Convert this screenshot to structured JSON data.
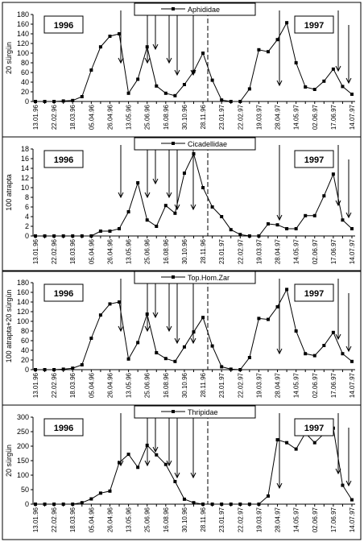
{
  "chart_data": [
    {
      "type": "line",
      "y_label": "20 sürgün",
      "annotations": [
        "1996",
        "1997"
      ],
      "categories": [
        "13.01.96",
        null,
        "22.02.96",
        null,
        "18.03.96",
        null,
        "05.04.96",
        null,
        "26.04.96",
        null,
        "13.05.96",
        null,
        "25.06.96",
        null,
        "16.08.96",
        null,
        "30.10.96",
        null,
        "28.11.96",
        null,
        "23.01.97",
        null,
        "22.02.97",
        null,
        "19.03.97",
        null,
        "28.04.97",
        null,
        "14.05.97",
        null,
        "02.06.97",
        null,
        "17.06.97",
        null,
        "14.07.97"
      ],
      "series": [
        {
          "name": "Aphididae",
          "color": "#000000",
          "values": [
            0,
            0,
            0,
            1,
            2,
            10,
            65,
            113,
            135,
            140,
            17,
            46,
            113,
            32,
            17,
            12,
            35,
            62,
            100,
            44,
            3,
            0,
            0,
            26,
            107,
            103,
            128,
            163,
            80,
            30,
            25,
            42,
            67,
            31,
            15
          ]
        }
      ],
      "ylim": [
        0,
        180
      ],
      "yticks": [
        0,
        20,
        40,
        60,
        80,
        100,
        120,
        140,
        160,
        180
      ]
    },
    {
      "type": "line",
      "y_label": "100 atrapta",
      "annotations": [
        "1996",
        "1997"
      ],
      "categories": [
        "13.01.96",
        null,
        "22.02.96",
        null,
        "18.03.96",
        null,
        "05.04.96",
        null,
        "26.04.96",
        null,
        "13.05.96",
        null,
        "25.06.96",
        null,
        "16.08.96",
        null,
        "30.10.96",
        null,
        "28.11.96",
        null,
        "23.01.97",
        null,
        "22.02.97",
        null,
        "19.03.97",
        null,
        "28.04.97",
        null,
        "14.05.97",
        null,
        "02.06.97",
        null,
        "17.06.97",
        null,
        "14.07.97"
      ],
      "series": [
        {
          "name": "Cicadellidae",
          "color": "#000000",
          "values": [
            0,
            0,
            0,
            0,
            0,
            0,
            0,
            1,
            1,
            1.5,
            5,
            11,
            3.3,
            2,
            6.3,
            4.7,
            13,
            17,
            10,
            6,
            4,
            1.3,
            0.3,
            0,
            0,
            2.5,
            2.3,
            1.5,
            1.5,
            4.2,
            4.2,
            8.3,
            12.8,
            3.3,
            1.5
          ]
        }
      ],
      "ylim": [
        0,
        18
      ],
      "yticks": [
        0,
        2,
        4,
        6,
        8,
        10,
        12,
        14,
        16,
        18
      ]
    },
    {
      "type": "line",
      "y_label": "100 atrapta+20 sürgün",
      "annotations": [
        "1996",
        "1997"
      ],
      "categories": [
        "13.01.96",
        null,
        "22.02.96",
        null,
        "18.03.96",
        null,
        "05.04.96",
        null,
        "26.04.96",
        null,
        "13.05.96",
        null,
        "25.06.96",
        null,
        "16.08.96",
        null,
        "30.10.96",
        null,
        "28.11.96",
        null,
        "23.01.97",
        null,
        "22.02.97",
        null,
        "19.03.97",
        null,
        "28.04.97",
        null,
        "14.05.97",
        null,
        "02.06.97",
        null,
        "17.06.97",
        null,
        "14.07.97"
      ],
      "series": [
        {
          "name": "Top.Hom.Zar",
          "color": "#000000",
          "values": [
            0,
            0,
            0,
            1,
            3,
            10,
            65,
            113,
            136,
            140,
            22,
            56,
            115,
            35,
            23,
            17,
            47,
            78,
            108,
            49,
            6,
            1,
            0,
            25,
            106,
            104,
            130,
            166,
            80,
            33,
            29,
            50,
            77,
            33,
            17
          ]
        }
      ],
      "ylim": [
        0,
        180
      ],
      "yticks": [
        0,
        20,
        40,
        60,
        80,
        100,
        120,
        140,
        160,
        180
      ]
    },
    {
      "type": "line",
      "y_label": "20 sürgün",
      "annotations": [
        "1996",
        "1997"
      ],
      "categories": [
        "13.01.96",
        null,
        "22.02.96",
        null,
        "18.03.96",
        null,
        "05.04.96",
        null,
        "26.04.96",
        null,
        "13.05.96",
        null,
        "25.06.96",
        null,
        "16.08.96",
        null,
        "30.10.96",
        null,
        "28.11.96",
        null,
        "23.01.97",
        null,
        "22.02.97",
        null,
        "19.03.97",
        null,
        "28.04.97",
        null,
        "14.05.97",
        null,
        "02.06.97",
        null,
        "17.06.97",
        null,
        "14.07.97"
      ],
      "series": [
        {
          "name": "Thripidae",
          "color": "#000000",
          "values": [
            0,
            0,
            0,
            0,
            0,
            5,
            18,
            38,
            45,
            143,
            172,
            127,
            203,
            170,
            137,
            78,
            17,
            5,
            0,
            0,
            0,
            0,
            0,
            0,
            0,
            28,
            222,
            212,
            190,
            245,
            212,
            243,
            262,
            65,
            15
          ]
        }
      ],
      "ylim": [
        0,
        300
      ],
      "yticks": [
        0,
        50,
        100,
        150,
        200,
        250,
        300
      ]
    }
  ]
}
